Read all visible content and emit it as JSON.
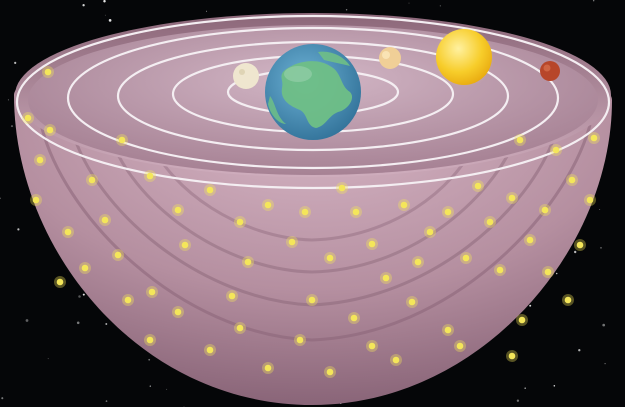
{
  "figure": {
    "subject": "geocentric-celestial-spheres",
    "background_color": "#050608",
    "sphere_color": "#b58fa0",
    "sphere_shadow_color": "#6e4d60",
    "orbit_line_color": "#f4eef2",
    "star_color": "#f4e65a",
    "orbit_count": 5,
    "center_body": {
      "name": "earth",
      "icon": "earth-globe-icon",
      "colors": {
        "ocean": "#4a8fb4",
        "land": "#6fbf86"
      }
    },
    "orbiting_bodies": [
      {
        "name": "moon",
        "icon": "moon-icon",
        "color": "#efe6cf"
      },
      {
        "name": "venus",
        "icon": "venus-icon",
        "color": "#f0cf97"
      },
      {
        "name": "sun",
        "icon": "sun-icon",
        "color": "#f7cd2a"
      },
      {
        "name": "mars",
        "icon": "mars-icon",
        "color": "#b7462a"
      }
    ]
  }
}
